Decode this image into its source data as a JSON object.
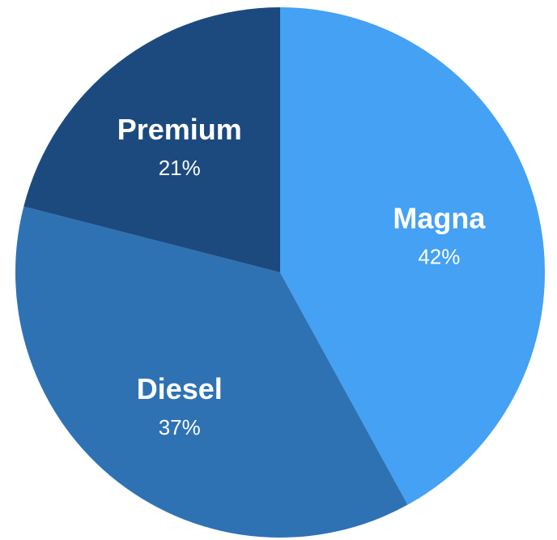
{
  "chart_data": {
    "type": "pie",
    "categories": [
      "Magna",
      "Diesel",
      "Premium"
    ],
    "values": [
      42,
      37,
      21
    ],
    "unit": "%",
    "colors": [
      "#44a1f3",
      "#2e72b4",
      "#1c4a7e"
    ],
    "start_angle_deg": 0,
    "direction": "clockwise",
    "data_labels": [
      "42%",
      "37%",
      "21%"
    ],
    "title": "",
    "legend": "none"
  }
}
